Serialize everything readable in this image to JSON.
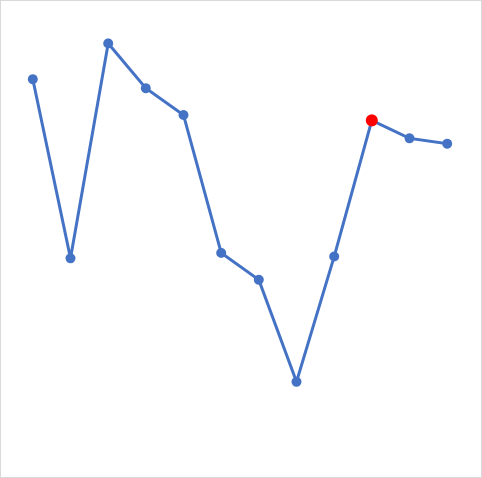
{
  "chart_data": {
    "type": "line",
    "title": "",
    "xlabel": "",
    "ylabel": "",
    "x": [
      1,
      2,
      3,
      4,
      5,
      6,
      7,
      8,
      9,
      10,
      11,
      12
    ],
    "series": [
      {
        "values": [
          8.8,
          3.8,
          9.8,
          8.55,
          7.8,
          3.95,
          3.2,
          0.35,
          3.85,
          7.65,
          7.15,
          7.0
        ],
        "highlight_index": 9
      }
    ],
    "xlim": [
      0.5,
      12.5
    ],
    "ylim": [
      -2.0,
      10.9
    ],
    "grid": false,
    "legend": "none",
    "colors": {
      "line": "#4472c4",
      "marker": "#4472c4",
      "highlight": "#ff0000",
      "border": "#d9d9d9"
    }
  }
}
